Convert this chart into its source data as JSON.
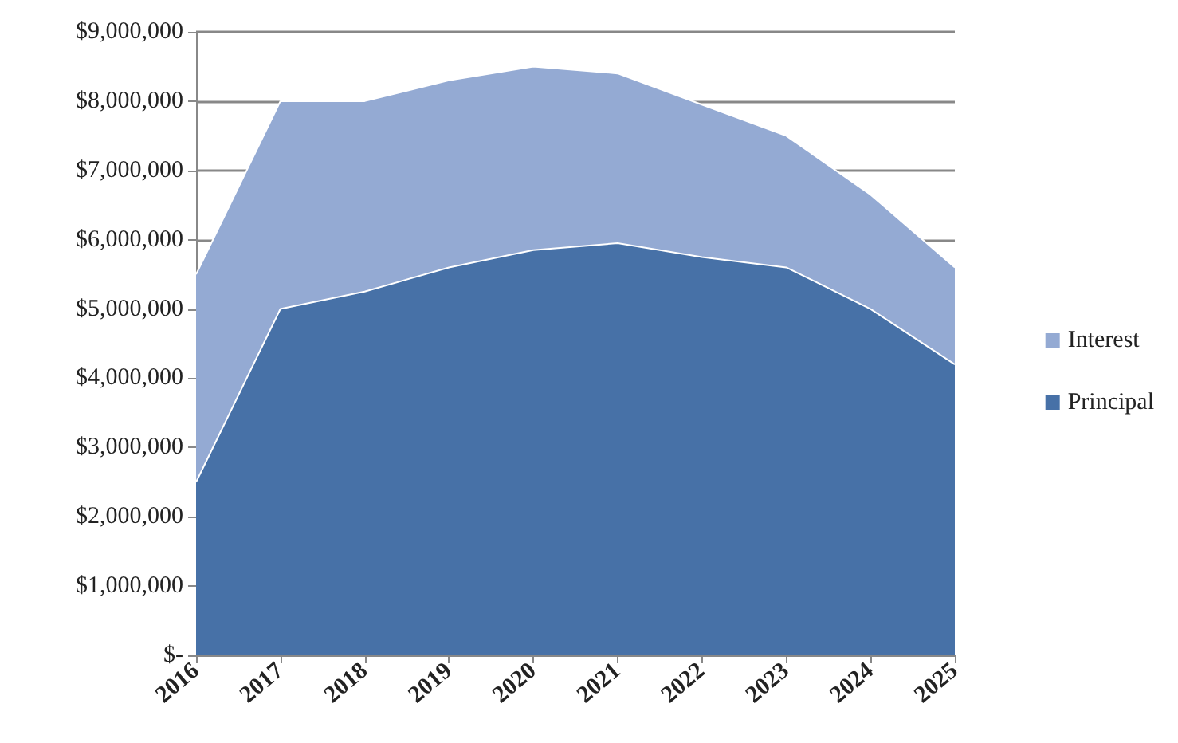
{
  "chart_data": {
    "type": "area",
    "stacked": true,
    "categories": [
      "2016",
      "2017",
      "2018",
      "2019",
      "2020",
      "2021",
      "2022",
      "2023",
      "2024",
      "2025"
    ],
    "series": [
      {
        "name": "Principal",
        "color": "#4771a7",
        "values": [
          2500000,
          5000000,
          5250000,
          5600000,
          5850000,
          5950000,
          5750000,
          5600000,
          5000000,
          4200000
        ]
      },
      {
        "name": "Interest",
        "color": "#94aad3",
        "values": [
          3000000,
          3000000,
          2750000,
          2700000,
          2650000,
          2450000,
          2200000,
          1900000,
          1650000,
          1400000
        ]
      }
    ],
    "ylim": [
      0,
      9000000
    ],
    "yticks": [
      {
        "value": 0,
        "label": "$-"
      },
      {
        "value": 1000000,
        "label": "$1,000,000"
      },
      {
        "value": 2000000,
        "label": "$2,000,000"
      },
      {
        "value": 3000000,
        "label": "$3,000,000"
      },
      {
        "value": 4000000,
        "label": "$4,000,000"
      },
      {
        "value": 5000000,
        "label": "$5,000,000"
      },
      {
        "value": 6000000,
        "label": "$6,000,000"
      },
      {
        "value": 7000000,
        "label": "$7,000,000"
      },
      {
        "value": 8000000,
        "label": "$8,000,000"
      },
      {
        "value": 9000000,
        "label": "$9,000,000"
      }
    ],
    "grid": "y",
    "legend": "right"
  }
}
